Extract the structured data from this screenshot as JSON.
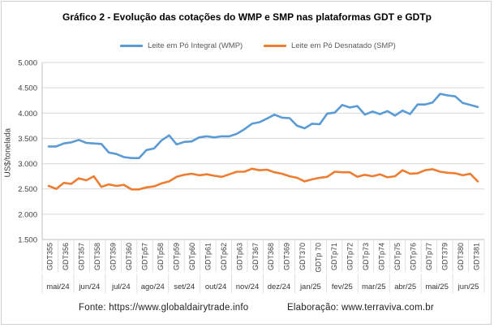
{
  "chart_data": {
    "type": "line",
    "title": "Gráfico  2 - Evolução  das cotações do WMP e SMP nas plataformas GDT e GDTp",
    "ylabel": "US$/tonelada",
    "xlabel": "",
    "ylim": [
      1500,
      5000
    ],
    "yticks": [
      "1.500",
      "2.000",
      "2.500",
      "3.000",
      "3.500",
      "4.000",
      "4.500",
      "5.000"
    ],
    "ytick_values": [
      1500,
      2000,
      2500,
      3000,
      3500,
      4000,
      4500,
      5000
    ],
    "grid": true,
    "legend_position": "top",
    "x_labels": [
      "GDT355",
      "GDT356",
      "GDT357",
      "GDT358",
      "GDT359",
      "GDT360",
      "GDTp57",
      "GDTp58",
      "GDTp59",
      "GDTp60",
      "GDTp61",
      "GDTp62",
      "GDTp63",
      "GDT367",
      "GDT368",
      "GDT369",
      "GDT370",
      "GDTp 70",
      "GDTp71",
      "GDTp72",
      "GDTp73",
      "GDTp74",
      "GDTp75",
      "GDTp76",
      "GDTp77",
      "GDT379",
      "GDT380",
      "GDT381"
    ],
    "months": [
      "mai/24",
      "jun/24",
      "jul/24",
      "ago/24",
      "set/24",
      "out/24",
      "nov/24",
      "dez/24",
      "jan/25",
      "fev/25",
      "mar/25",
      "abr/25",
      "mai/25",
      "jun/25"
    ],
    "series": [
      {
        "name": "Leite em Pó Integral (WMP)",
        "color": "#5b9bd5",
        "values": [
          3340,
          3340,
          3400,
          3420,
          3470,
          3410,
          3400,
          3390,
          3220,
          3190,
          3130,
          3110,
          3110,
          3270,
          3300,
          3460,
          3560,
          3380,
          3430,
          3440,
          3520,
          3540,
          3520,
          3540,
          3540,
          3590,
          3680,
          3790,
          3820,
          3890,
          3970,
          3910,
          3900,
          3750,
          3700,
          3790,
          3780,
          3990,
          4010,
          4160,
          4110,
          4140,
          3970,
          4030,
          3980,
          4040,
          3950,
          4050,
          3980,
          4170,
          4170,
          4210,
          4380,
          4350,
          4330,
          4200,
          4160,
          4120
        ]
      },
      {
        "name": "Leite em Pó Desnatado (SMP)",
        "color": "#ed7d31",
        "values": [
          2560,
          2500,
          2620,
          2600,
          2710,
          2670,
          2750,
          2540,
          2590,
          2560,
          2580,
          2490,
          2490,
          2530,
          2550,
          2610,
          2650,
          2740,
          2780,
          2800,
          2770,
          2790,
          2760,
          2740,
          2790,
          2840,
          2840,
          2900,
          2870,
          2880,
          2830,
          2800,
          2750,
          2720,
          2650,
          2690,
          2720,
          2740,
          2840,
          2830,
          2830,
          2740,
          2780,
          2750,
          2790,
          2730,
          2750,
          2870,
          2800,
          2810,
          2870,
          2890,
          2840,
          2820,
          2810,
          2770,
          2800,
          2650
        ]
      }
    ]
  },
  "footer": {
    "source": "Fonte:  https://www.globaldairytrade.info",
    "credit": "Elaboração: www.terraviva.com.br"
  }
}
